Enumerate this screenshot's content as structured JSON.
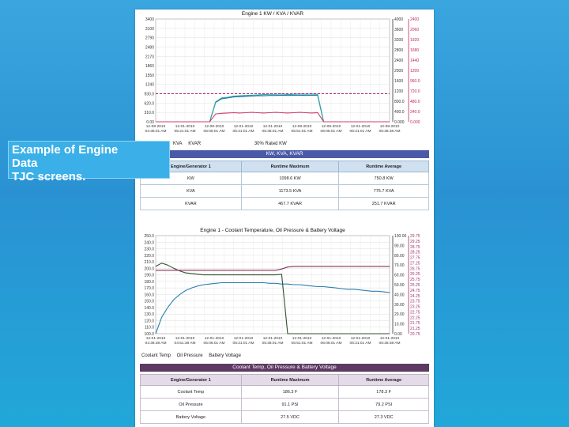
{
  "caption": {
    "line1": "Example of Engine",
    "line2": "Data",
    "line3": "TJC screens."
  },
  "chart_data": [
    {
      "type": "line",
      "title": "Engine 1 KW / KVA / KVAR",
      "ylim_left": [
        0,
        3400
      ],
      "yticks_left": [
        "3400",
        "3100",
        "2790",
        "2480",
        "2170",
        "1860",
        "1550",
        "1240",
        "930.0",
        "620.0",
        "310.0",
        "0.00"
      ],
      "yticks_right_1": [
        "4000",
        "3600",
        "3200",
        "2800",
        "2400",
        "2000",
        "1600",
        "1200",
        "800.0",
        "400.0",
        "0.000"
      ],
      "yticks_right_2": [
        "2400",
        "2060",
        "1920",
        "1680",
        "1440",
        "1200",
        "960.0",
        "720.0",
        "480.0",
        "240.0",
        "0.000"
      ],
      "xticks": [
        {
          "date": "12-08-2010",
          "time": "04:36:01 AM"
        },
        {
          "date": "12-01-2010",
          "time": "05:21:01 AM"
        },
        {
          "date": "12-08-2010",
          "time": "06:06:01 AM"
        },
        {
          "date": "12-01-2010",
          "time": "05:21:01 AM"
        },
        {
          "date": "12-01-2010",
          "time": "05:36:01 AM"
        },
        {
          "date": "12-08-2010",
          "time": "05:51:01 AM"
        },
        {
          "date": "12-08-2010",
          "time": "06:06:01 AM"
        },
        {
          "date": "12-01-2010",
          "time": "06:21:01 AM"
        },
        {
          "date": "12-08-2010",
          "time": "06:36:38 AM"
        }
      ],
      "series": [
        {
          "name": "KW",
          "color": "#1a6fa8",
          "values": [
            0,
            0,
            0,
            0,
            0,
            0,
            0,
            0,
            0,
            0,
            640,
            760,
            790,
            820,
            830,
            840,
            850,
            860,
            860,
            870,
            870,
            880,
            870,
            880,
            880,
            870,
            880,
            880,
            0,
            0,
            0,
            0,
            0,
            0,
            0,
            0,
            0,
            0,
            0,
            0
          ]
        },
        {
          "name": "KVA",
          "color": "#2aa8a0",
          "values": [
            0,
            0,
            0,
            0,
            0,
            0,
            0,
            0,
            0,
            0,
            660,
            790,
            810,
            850,
            860,
            870,
            880,
            890,
            900,
            910,
            910,
            920,
            900,
            910,
            920,
            910,
            920,
            910,
            0,
            0,
            0,
            0,
            0,
            0,
            0,
            0,
            0,
            0,
            0,
            0
          ]
        },
        {
          "name": "KVAR",
          "color": "#d0406a",
          "values": [
            0,
            0,
            0,
            0,
            0,
            0,
            0,
            0,
            0,
            0,
            260,
            280,
            290,
            300,
            290,
            300,
            310,
            300,
            290,
            300,
            310,
            300,
            290,
            300,
            310,
            300,
            290,
            300,
            0,
            0,
            0,
            0,
            0,
            0,
            0,
            0,
            0,
            0,
            0,
            0
          ]
        },
        {
          "name": "30% Rated KW",
          "color": "#b03080",
          "style": "dashed",
          "values": [
            930,
            930,
            930,
            930,
            930,
            930,
            930,
            930,
            930,
            930,
            930,
            930,
            930,
            930,
            930,
            930,
            930,
            930,
            930,
            930,
            930,
            930,
            930,
            930,
            930,
            930,
            930,
            930,
            930,
            930,
            930,
            930,
            930,
            930,
            930,
            930,
            930,
            930,
            930,
            930
          ]
        }
      ],
      "legend": [
        "KVA",
        "KVAR",
        "30% Rated KW"
      ]
    },
    {
      "type": "line",
      "title": "Engine 1 - Coolant Temperature, Oil Pressure & Battery Voltage",
      "ylim_left": [
        100,
        250
      ],
      "yticks_left": [
        "250.0",
        "240.0",
        "230.0",
        "220.0",
        "210.0",
        "200.0",
        "190.0",
        "180.0",
        "170.0",
        "160.0",
        "150.0",
        "140.0",
        "130.0",
        "120.0",
        "110.0",
        "100.0"
      ],
      "yticks_right_1": [
        "100.00",
        "90.00",
        "80.00",
        "70.00",
        "60.00",
        "50.00",
        "40.00",
        "30.00",
        "20.00",
        "10.00",
        "0.00"
      ],
      "yticks_right_2": [
        "29.75",
        "29.25",
        "28.75",
        "28.25",
        "27.75",
        "27.25",
        "26.75",
        "26.25",
        "25.75",
        "25.25",
        "24.75",
        "24.25",
        "23.75",
        "23.25",
        "22.75",
        "22.25",
        "21.75",
        "21.25",
        "20.75"
      ],
      "xticks": [
        {
          "date": "12-01-2010",
          "time": "04:36:38 AM"
        },
        {
          "date": "12-01-2010",
          "time": "04:51:38 AM"
        },
        {
          "date": "12-01-2010",
          "time": "05:06:01 AM"
        },
        {
          "date": "12-01-2010",
          "time": "05:21:01 AM"
        },
        {
          "date": "12-01-2010",
          "time": "05:36:01 AM"
        },
        {
          "date": "12-01-2010",
          "time": "05:51:01 AM"
        },
        {
          "date": "12-01-2010",
          "time": "06:06:01 AM"
        },
        {
          "date": "12-01-2010",
          "time": "06:21:01 AM"
        },
        {
          "date": "12-01-2010",
          "time": "06:36:38 AM"
        }
      ],
      "series": [
        {
          "name": "Coolant Temp",
          "color": "#2a7fb0",
          "values": [
            100,
            125,
            140,
            152,
            160,
            166,
            170,
            173,
            175,
            176,
            177,
            178,
            178,
            178,
            178,
            178,
            178,
            178,
            178,
            177,
            177,
            176,
            176,
            175,
            175,
            174,
            173,
            172,
            172,
            171,
            170,
            169,
            168,
            168,
            167,
            166,
            165,
            165,
            164,
            163
          ]
        },
        {
          "name": "Oil Pressure",
          "color": "#2f4f2f",
          "values": [
            203,
            208,
            205,
            200,
            196,
            193,
            192,
            191,
            190,
            190,
            190,
            190,
            190,
            190,
            190,
            190,
            190,
            190,
            190,
            190,
            190,
            191,
            100,
            100,
            100,
            100,
            100,
            100,
            100,
            100,
            100,
            100,
            100,
            100,
            100,
            100,
            100,
            100,
            100,
            100
          ]
        },
        {
          "name": "Battery Voltage",
          "color": "#8a2e5a",
          "values": [
            197,
            197,
            197,
            197,
            197,
            197,
            197,
            197,
            197,
            197,
            197,
            197,
            197,
            197,
            197,
            197,
            197,
            197,
            197,
            197,
            197,
            199,
            202,
            203,
            203,
            203,
            203,
            203,
            203,
            203,
            203,
            203,
            203,
            203,
            203,
            203,
            203,
            203,
            203,
            203
          ]
        }
      ],
      "legend": [
        "Coolant Temp",
        "Oil Pressure",
        "Battery Voltage"
      ]
    }
  ],
  "panel1": {
    "legend": [
      "KVA",
      "KVAR",
      "30% Rated KW"
    ],
    "band": "KW, KVA, KVAR",
    "headers": [
      "Engine/Generator 1",
      "Runtime Maximum",
      "Runtime Average"
    ],
    "rows": [
      {
        "label": "KW",
        "max": "1098.6 KW",
        "avg": "750.8 KW"
      },
      {
        "label": "KVA",
        "max": "1173.5 KVA",
        "avg": "775.7 KVA"
      },
      {
        "label": "KVAR",
        "max": "467.7 KVAR",
        "avg": "251.7 KVAR"
      }
    ]
  },
  "panel2": {
    "legend": [
      "Coolant Temp",
      "Oil Pressure",
      "Battery Voltage"
    ],
    "band": "Coolant Temp, Oil Pressure & Battery Voltage",
    "headers": [
      "Engine/Generator 1",
      "Runtime Maximum",
      "Runtime Average"
    ],
    "rows": [
      {
        "label": "Coolant Temp",
        "max": "186.3 F",
        "avg": "178.3 F"
      },
      {
        "label": "Oil Pressure",
        "max": "91.1 PSI",
        "avg": "79.2 PSI"
      },
      {
        "label": "Battery Voltage",
        "max": "27.5 VDC",
        "avg": "27.3 VDC"
      }
    ]
  }
}
